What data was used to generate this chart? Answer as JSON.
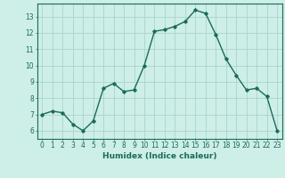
{
  "x": [
    0,
    1,
    2,
    3,
    4,
    5,
    6,
    7,
    8,
    9,
    10,
    11,
    12,
    13,
    14,
    15,
    16,
    17,
    18,
    19,
    20,
    21,
    22,
    23
  ],
  "y": [
    7.0,
    7.2,
    7.1,
    6.4,
    6.0,
    6.6,
    8.6,
    8.9,
    8.4,
    8.5,
    10.0,
    12.1,
    12.2,
    12.4,
    12.7,
    13.4,
    13.2,
    11.9,
    10.4,
    9.4,
    8.5,
    8.6,
    8.1,
    6.0
  ],
  "line_color": "#1a6b5a",
  "marker": "D",
  "marker_size": 1.8,
  "line_width": 1.0,
  "xlabel": "Humidex (Indice chaleur)",
  "xlim": [
    -0.5,
    23.5
  ],
  "ylim": [
    5.5,
    13.8
  ],
  "yticks": [
    6,
    7,
    8,
    9,
    10,
    11,
    12,
    13
  ],
  "xticks": [
    0,
    1,
    2,
    3,
    4,
    5,
    6,
    7,
    8,
    9,
    10,
    11,
    12,
    13,
    14,
    15,
    16,
    17,
    18,
    19,
    20,
    21,
    22,
    23
  ],
  "bg_color": "#ceeee8",
  "grid_color": "#aad4ce",
  "tick_color": "#1a6b5a",
  "label_color": "#1a6b5a",
  "xlabel_fontsize": 6.5,
  "tick_fontsize": 5.5
}
